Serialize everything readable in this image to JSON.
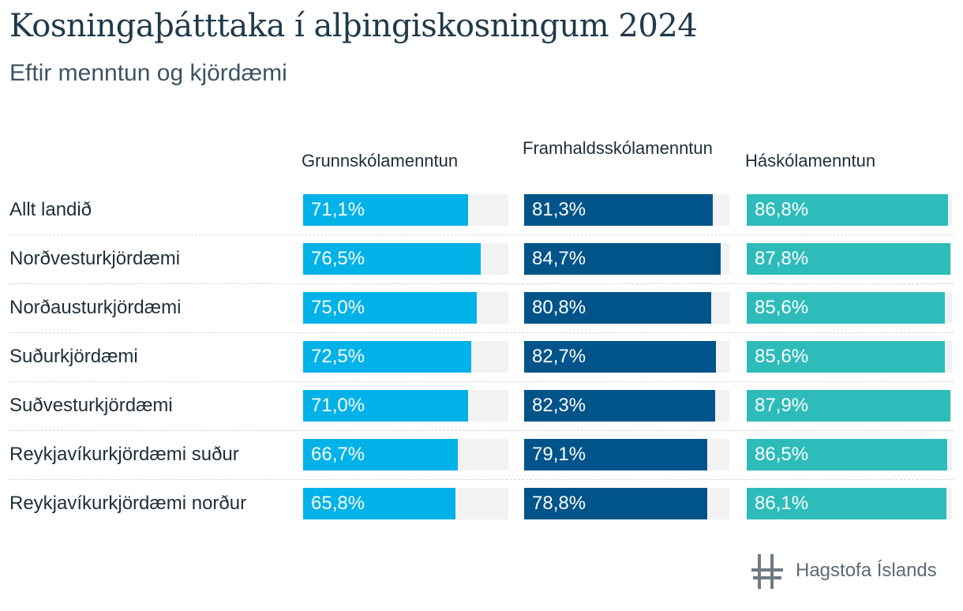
{
  "title": "Kosningaþátttaka í alþingiskosningum 2024",
  "subtitle": "Eftir menntun og kjördæmi",
  "logo_text": "Hagstofa Íslands",
  "chart_data": {
    "type": "bar",
    "title": "Kosningaþátttaka í alþingiskosningum 2024",
    "subtitle": "Eftir menntun og kjördæmi",
    "categories": [
      "Allt landið",
      "Norðvesturkjördæmi",
      "Norðausturkjördæmi",
      "Suðurkjördæmi",
      "Suðvesturkjördæmi",
      "Reykjavíkurkjördæmi suður",
      "Reykjavíkurkjördæmi norður"
    ],
    "series": [
      {
        "name": "Grunnskólamenntun",
        "color": "#00b2e8",
        "values": [
          71.1,
          76.5,
          75.0,
          72.5,
          71.0,
          66.7,
          65.8
        ],
        "labels": [
          "71,1%",
          "76,5%",
          "75,0%",
          "72,5%",
          "71,0%",
          "66,7%",
          "65,8%"
        ]
      },
      {
        "name": "Framhaldsskólamenntun",
        "color": "#00548a",
        "values": [
          81.3,
          84.7,
          80.8,
          82.7,
          82.3,
          79.1,
          78.8
        ],
        "labels": [
          "81,3%",
          "84,7%",
          "80,8%",
          "82,7%",
          "82,3%",
          "79,1%",
          "78,8%"
        ]
      },
      {
        "name": "Háskólamenntun",
        "color": "#2ebcba",
        "values": [
          86.8,
          87.8,
          85.6,
          85.6,
          87.9,
          86.5,
          86.1
        ],
        "labels": [
          "86,8%",
          "87,8%",
          "85,6%",
          "85,6%",
          "87,9%",
          "86,5%",
          "86,1%"
        ]
      }
    ],
    "background_track_color": "#f2f2f2",
    "legend": "column headers"
  }
}
